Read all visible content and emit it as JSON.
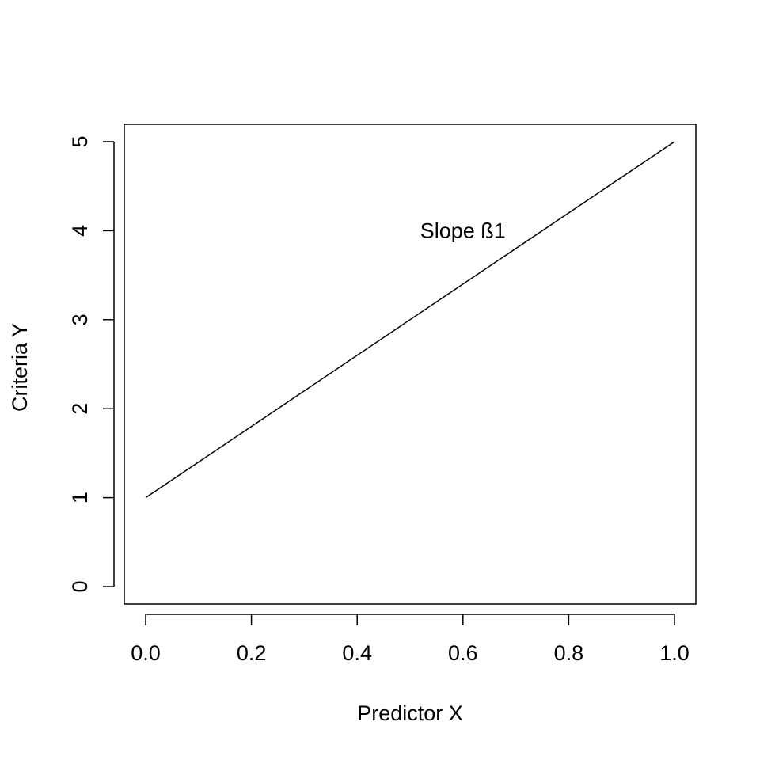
{
  "chart_data": {
    "type": "line",
    "title": "",
    "xlabel": "Predictor X",
    "ylabel": "Criteria Y",
    "xlim": [
      0.0,
      1.0
    ],
    "ylim": [
      0,
      5
    ],
    "x_ticks": [
      "0.0",
      "0.2",
      "0.4",
      "0.6",
      "0.8",
      "1.0"
    ],
    "x_tick_values": [
      0.0,
      0.2,
      0.4,
      0.6,
      0.8,
      1.0
    ],
    "y_ticks": [
      "0",
      "1",
      "2",
      "3",
      "4",
      "5"
    ],
    "y_tick_values": [
      0,
      1,
      2,
      3,
      4,
      5
    ],
    "grid": false,
    "series": [
      {
        "x": [
          0.0,
          1.0
        ],
        "y": [
          1,
          5
        ]
      }
    ],
    "annotations": [
      {
        "text": "Slope ß1",
        "x": 0.6,
        "y": 4.0
      }
    ]
  }
}
